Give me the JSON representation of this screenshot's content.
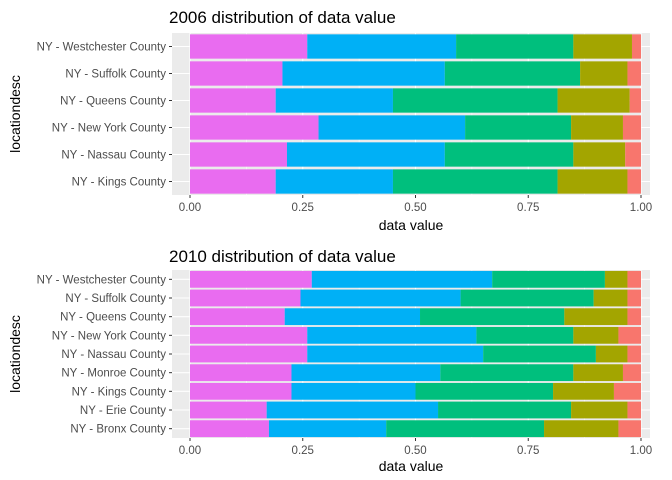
{
  "colors": {
    "panel_background": "#ebebeb",
    "grid": "#ffffff",
    "segments": [
      "#e96cf0",
      "#00b0f6",
      "#00bf7d",
      "#a3a500",
      "#f8766d"
    ]
  },
  "chart_data": [
    {
      "type": "bar",
      "orientation": "horizontal",
      "stacked": true,
      "title": "2006 distribution of data value",
      "xlabel": "data value",
      "ylabel": "locationdesc",
      "xlim": [
        0,
        1
      ],
      "x_ticks": [
        "0.00",
        "0.25",
        "0.50",
        "0.75",
        "1.00"
      ],
      "grid": true,
      "legend": "none",
      "categories": [
        "NY - Westchester County",
        "NY - Suffolk County",
        "NY - Queens County",
        "NY - New York County",
        "NY - Nassau County",
        "NY - Kings County"
      ],
      "segments": [
        [
          0.26,
          0.33,
          0.26,
          0.13,
          0.02
        ],
        [
          0.205,
          0.36,
          0.3,
          0.105,
          0.03
        ],
        [
          0.19,
          0.26,
          0.365,
          0.16,
          0.025
        ],
        [
          0.285,
          0.325,
          0.235,
          0.115,
          0.04
        ],
        [
          0.215,
          0.35,
          0.285,
          0.115,
          0.035
        ],
        [
          0.19,
          0.26,
          0.365,
          0.155,
          0.03
        ]
      ]
    },
    {
      "type": "bar",
      "orientation": "horizontal",
      "stacked": true,
      "title": "2010 distribution of data value",
      "xlabel": "data value",
      "ylabel": "locationdesc",
      "xlim": [
        0,
        1
      ],
      "x_ticks": [
        "0.00",
        "0.25",
        "0.50",
        "0.75",
        "1.00"
      ],
      "grid": true,
      "legend": "none",
      "categories": [
        "NY - Westchester County",
        "NY - Suffolk County",
        "NY - Queens County",
        "NY - New York County",
        "NY - Nassau County",
        "NY - Monroe County",
        "NY - Kings County",
        "NY - Erie County",
        "NY - Bronx County"
      ],
      "segments": [
        [
          0.27,
          0.4,
          0.25,
          0.05,
          0.03
        ],
        [
          0.245,
          0.355,
          0.295,
          0.075,
          0.03
        ],
        [
          0.21,
          0.3,
          0.32,
          0.14,
          0.03
        ],
        [
          0.26,
          0.375,
          0.215,
          0.1,
          0.05
        ],
        [
          0.26,
          0.39,
          0.25,
          0.07,
          0.03
        ],
        [
          0.225,
          0.33,
          0.295,
          0.11,
          0.04
        ],
        [
          0.225,
          0.275,
          0.305,
          0.135,
          0.06
        ],
        [
          0.17,
          0.38,
          0.295,
          0.125,
          0.03
        ],
        [
          0.175,
          0.26,
          0.35,
          0.165,
          0.05
        ]
      ]
    }
  ]
}
